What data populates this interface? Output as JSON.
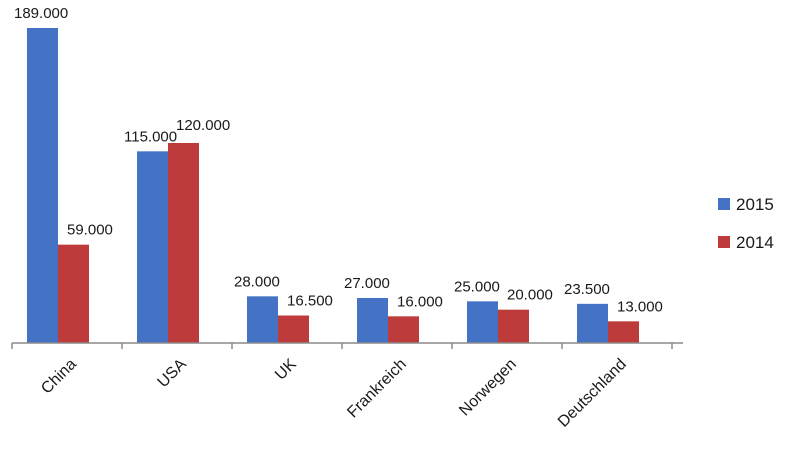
{
  "chart_data": {
    "type": "bar",
    "title": "",
    "xlabel": "",
    "ylabel": "",
    "ylim": [
      0,
      189000
    ],
    "grid": false,
    "legend_position": "right",
    "categories": [
      "China",
      "USA",
      "UK",
      "Frankreich",
      "Norwegen",
      "Deutschland"
    ],
    "series": [
      {
        "name": "2015",
        "color": "#4472c4",
        "values": [
          189000,
          115000,
          28000,
          27000,
          25000,
          23500
        ],
        "labels": [
          "189.000",
          "115.000",
          "28.000",
          "27.000",
          "25.000",
          "23.500"
        ]
      },
      {
        "name": "2014",
        "color": "#be3b3b",
        "values": [
          59000,
          120000,
          16500,
          16000,
          20000,
          13000
        ],
        "labels": [
          "59.000",
          "120.000",
          "16.500",
          "16.000",
          "20.000",
          "13.000"
        ]
      }
    ]
  }
}
